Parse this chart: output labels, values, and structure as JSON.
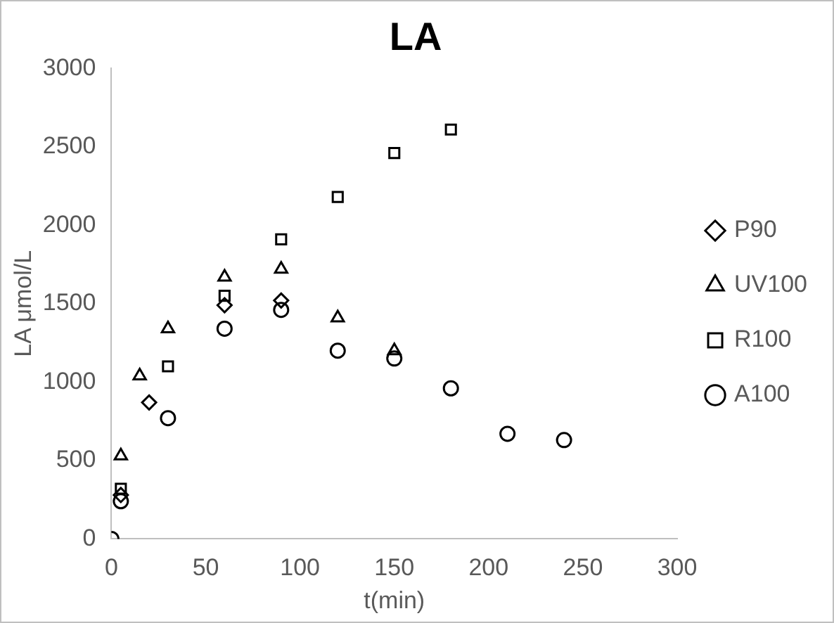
{
  "chart_data": {
    "type": "scatter",
    "title": "LA",
    "xlabel": "t(min)",
    "ylabel": "LA μmol/L",
    "xlim": [
      0,
      300
    ],
    "xticks": [
      0,
      50,
      100,
      150,
      200,
      250,
      300
    ],
    "ylim": [
      0,
      3000
    ],
    "yticks": [
      0,
      500,
      1000,
      1500,
      2000,
      2500,
      3000
    ],
    "grid": false,
    "legend": "right",
    "series": [
      {
        "name": "P90",
        "color": "#000000",
        "marker": "diamond",
        "x": [
          5,
          20,
          60,
          90
        ],
        "values": [
          280,
          870,
          1490,
          1520
        ]
      },
      {
        "name": "UV100",
        "color": "#000000",
        "marker": "triangle",
        "x": [
          5,
          15,
          30,
          60,
          90,
          120,
          150
        ],
        "values": [
          530,
          1040,
          1340,
          1670,
          1720,
          1410,
          1200
        ]
      },
      {
        "name": "R100",
        "color": "#000000",
        "marker": "square",
        "x": [
          5,
          30,
          60,
          90,
          120,
          150,
          180
        ],
        "values": [
          320,
          1100,
          1550,
          1910,
          2180,
          2460,
          2610
        ]
      },
      {
        "name": "A100",
        "color": "#000000",
        "marker": "circle",
        "x": [
          0,
          5,
          30,
          60,
          90,
          120,
          150,
          180,
          210,
          240
        ],
        "values": [
          0,
          240,
          770,
          1340,
          1460,
          1200,
          1150,
          960,
          670,
          630
        ]
      }
    ]
  }
}
